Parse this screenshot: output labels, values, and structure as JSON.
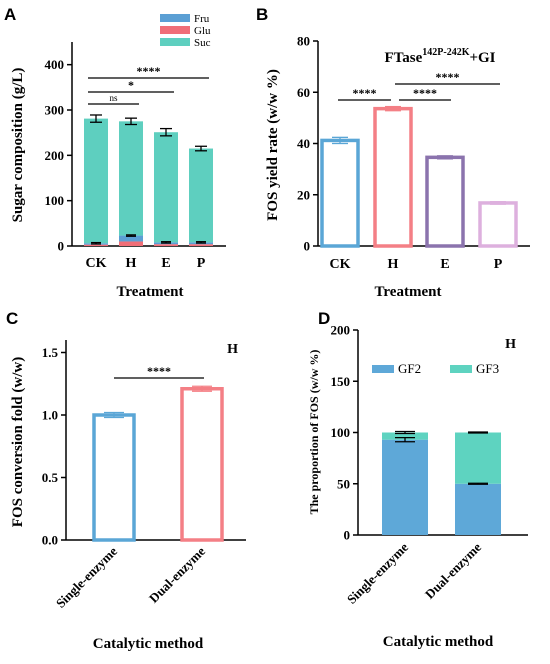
{
  "colors": {
    "fru": "#5b9fd4",
    "glu": "#f06e77",
    "suc": "#5ecfbf",
    "ck": "#5aa6d6",
    "h": "#f47f85",
    "e": "#8b73ad",
    "p": "#ddb0de",
    "gf2": "#5ea8d8",
    "gf3": "#5ed3c0"
  },
  "chart_data": [
    {
      "panel": "A",
      "type": "bar",
      "stacked": true,
      "xlabel": "Treatment",
      "ylabel": "Sugar composition (g/L)",
      "ylim": [
        0,
        450
      ],
      "yticks": [
        "0",
        "100",
        "200",
        "300",
        "400"
      ],
      "categories": [
        "CK",
        "H",
        "E",
        "P"
      ],
      "series": [
        {
          "name": "Fru",
          "values": [
            3,
            13,
            4,
            4
          ]
        },
        {
          "name": "Glu",
          "values": [
            3,
            10,
            4,
            4
          ]
        },
        {
          "name": "Suc",
          "values": [
            275,
            252,
            243,
            207
          ]
        }
      ],
      "errors": [
        8,
        7,
        8,
        5
      ],
      "legend": {
        "position": "top-right",
        "entries": [
          "Fru",
          "Glu",
          "Suc"
        ]
      },
      "significance": [
        {
          "from": "CK",
          "to": "H",
          "label": "ns"
        },
        {
          "from": "CK",
          "to": "E",
          "label": "*"
        },
        {
          "from": "CK",
          "to": "P",
          "label": "****"
        }
      ]
    },
    {
      "panel": "B",
      "type": "bar",
      "title_main": "FTase",
      "title_sup": "142P-242K",
      "title_tail": "+GI",
      "xlabel": "Treatment",
      "ylabel": "FOS yield rate (w/w %)",
      "ylim": [
        0,
        80
      ],
      "yticks": [
        "0",
        "20",
        "40",
        "60",
        "80"
      ],
      "categories": [
        "CK",
        "H",
        "E",
        "P"
      ],
      "values": [
        41.2,
        53.6,
        34.6,
        16.8
      ],
      "errors": [
        1.2,
        0.8,
        0.6,
        0.5
      ],
      "significance": [
        {
          "from": "CK",
          "to": "H",
          "label": "****"
        },
        {
          "from": "H",
          "to": "E",
          "label": "****"
        },
        {
          "from": "H",
          "to": "P",
          "label": "****"
        }
      ]
    },
    {
      "panel": "C",
      "type": "bar",
      "corner_label": "H",
      "xlabel": "Catalytic method",
      "ylabel": "FOS conversion fold (w/w)",
      "ylim": [
        0,
        1.6
      ],
      "yticks": [
        "0.0",
        "0.5",
        "1.0",
        "1.5"
      ],
      "categories": [
        "Single-enzyme",
        "Dual-enzyme"
      ],
      "values": [
        1.0,
        1.21
      ],
      "errors": [
        0.02,
        0.02
      ],
      "significance": [
        {
          "from": "Single-enzyme",
          "to": "Dual-enzyme",
          "label": "****"
        }
      ]
    },
    {
      "panel": "D",
      "type": "bar",
      "stacked": true,
      "corner_label": "H",
      "xlabel": "Catalytic method",
      "ylabel": "The proportion of FOS (w/w %)",
      "ylim": [
        0,
        200
      ],
      "yticks": [
        "0",
        "50",
        "100",
        "150",
        "200"
      ],
      "categories": [
        "Single-enzyme",
        "Dual-enzyme"
      ],
      "series": [
        {
          "name": "GF2",
          "values": [
            93,
            50
          ]
        },
        {
          "name": "GF3",
          "values": [
            7,
            50
          ]
        }
      ],
      "errors_gf2": [
        2,
        0.5
      ],
      "errors_total": [
        1,
        0.5
      ],
      "legend": {
        "position": "top",
        "entries": [
          "GF2",
          "GF3"
        ]
      }
    }
  ]
}
